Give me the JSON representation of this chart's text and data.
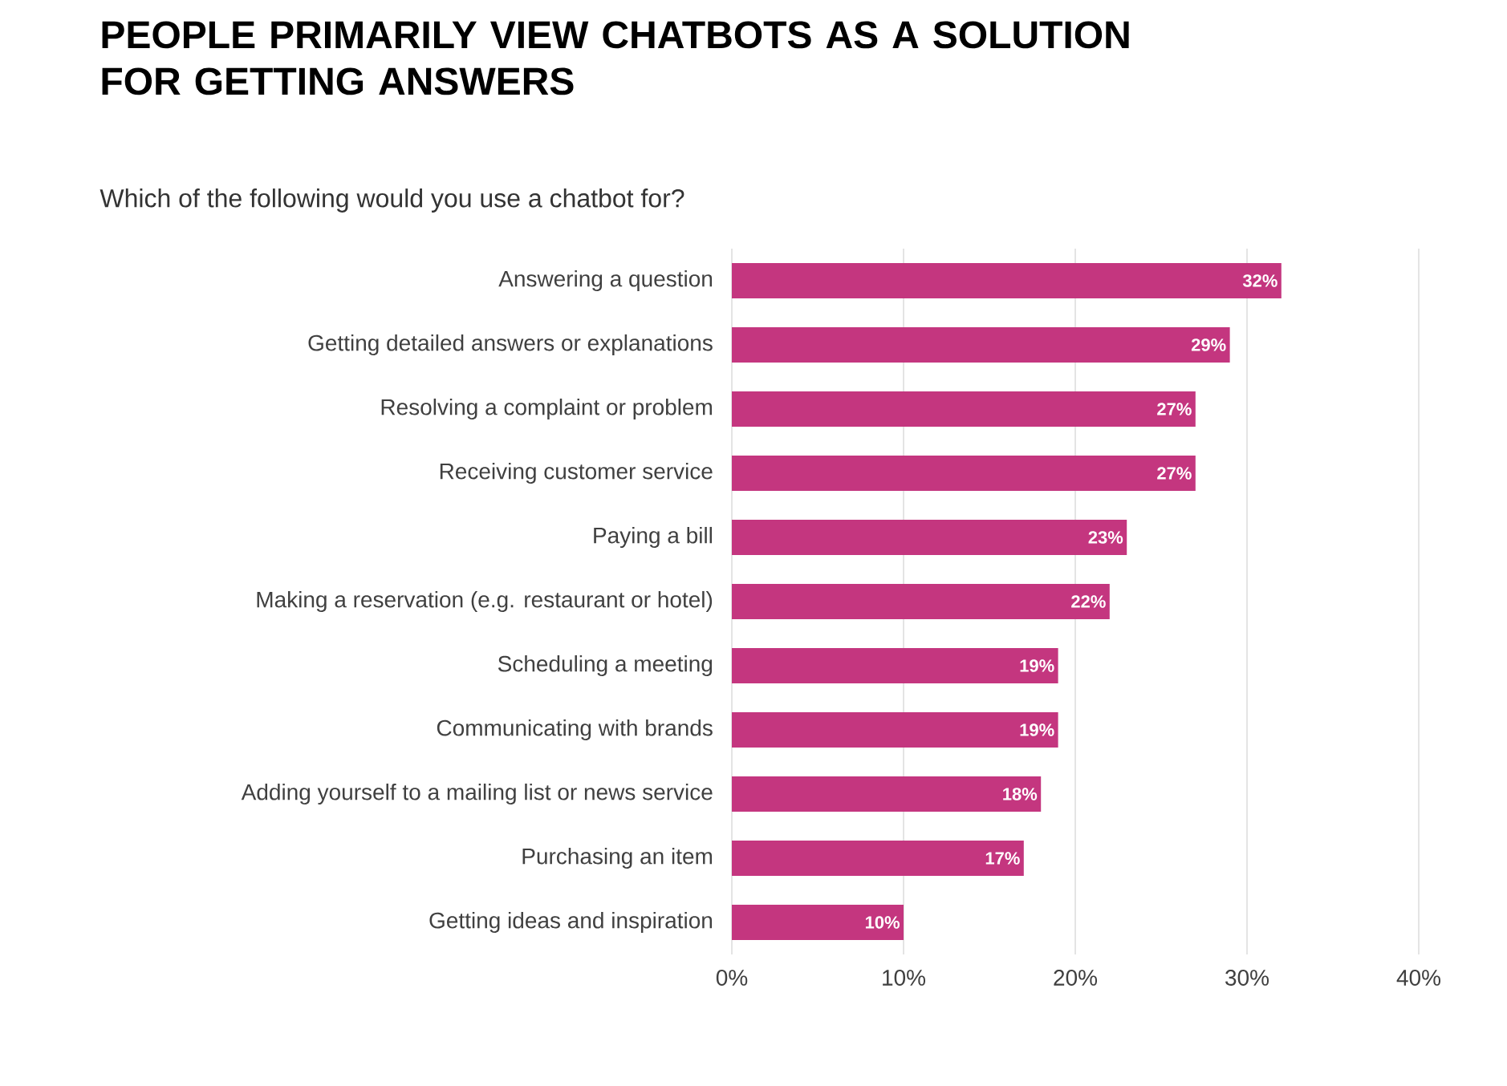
{
  "chart_data": {
    "type": "bar",
    "orientation": "horizontal",
    "title": "PEOPLE PRIMARILY VIEW CHATBOTS AS A SOLUTION FOR GETTING ANSWERS",
    "subtitle": "Which of the following would you use a chatbot for?",
    "categories": [
      "Answering a question",
      "Getting detailed answers or explanations",
      "Resolving a complaint or problem",
      "Receiving customer service",
      "Paying a bill",
      "Making a reservation (e.g. restaurant or hotel)",
      "Scheduling a meeting",
      "Communicating with brands",
      "Adding yourself to a mailing list or news service",
      "Purchasing an item",
      "Getting ideas and inspiration"
    ],
    "values": [
      32,
      29,
      27,
      27,
      23,
      22,
      19,
      19,
      18,
      17,
      10
    ],
    "value_labels": [
      "32%",
      "29%",
      "27%",
      "27%",
      "23%",
      "22%",
      "19%",
      "19%",
      "18%",
      "17%",
      "10%"
    ],
    "color": "#c4367f",
    "xlim": [
      0,
      40
    ],
    "xticks": [
      {
        "value": 0,
        "label": "0%"
      },
      {
        "value": 10,
        "label": "10%"
      },
      {
        "value": 20,
        "label": "20%"
      },
      {
        "value": 30,
        "label": "30%"
      },
      {
        "value": 40,
        "label": "40%"
      }
    ],
    "grid": "x"
  }
}
